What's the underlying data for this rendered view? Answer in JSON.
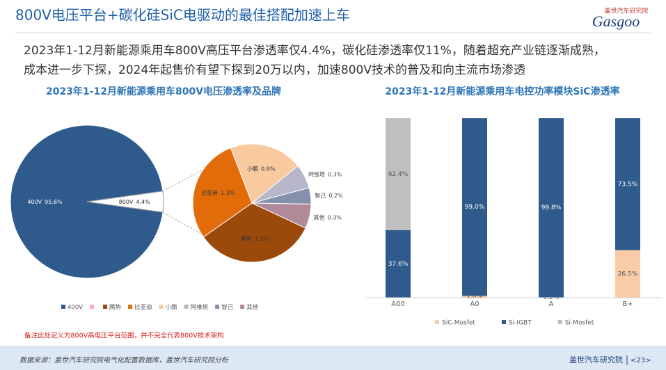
{
  "header": {
    "title": "800V电压平台+碳化硅SiC电驱动的最佳搭配加速上车",
    "logo_name": "盖世汽车研究院",
    "logo_brand": "Gasgoo"
  },
  "body": {
    "lines": [
      "2023年1-12月新能源乘用车800V高压平台渗透率仅4.4%，碳化硅渗透率仅11%，随着超充产业链逐渐成熟，",
      "成本进一步下探，2024年起售价有望下探到20万以内，加速800V技术的普及和向主流市场渗透"
    ]
  },
  "chart_data": [
    {
      "type": "pie-of-pie",
      "title": "2023年1-12月新能源乘用车800V电压渗透率及品牌",
      "categories": [
        "400V",
        "800V"
      ],
      "values": [
        95.6,
        4.4
      ],
      "value_labels": [
        "95.6%",
        "4.4%"
      ],
      "colors": [
        "#2e5a8c",
        "#ffffff"
      ],
      "breakdown": {
        "categories": [
          "腾势",
          "比亚迪",
          "小鹏",
          "阿维塔",
          "智己",
          "其他"
        ],
        "values": [
          1.5,
          1.3,
          0.9,
          0.3,
          0.2,
          0.3
        ],
        "value_labels": [
          "1.5%",
          "1.3%",
          "0.9%",
          "0.3%",
          "0.2%",
          "0.3%"
        ],
        "colors": [
          "#9c4a0c",
          "#e36c0a",
          "#f9c9a0",
          "#b7b7c9",
          "#8491ad",
          "#b08a98"
        ]
      },
      "legend": [
        {
          "name": "400V",
          "color": "#2e5a8c"
        },
        {
          "name": null,
          "color": "#f4b3c2"
        },
        {
          "name": "腾势",
          "color": "#9c4a0c"
        },
        {
          "name": "比亚迪",
          "color": "#e36c0a"
        },
        {
          "name": "小鹏",
          "color": "#f9c9a0"
        },
        {
          "name": "阿维塔",
          "color": "#b7b7c9"
        },
        {
          "name": "智己",
          "color": "#8491ad"
        },
        {
          "name": "其他",
          "color": "#b08a98"
        }
      ],
      "note": "备注此处定义为800V高电压平台范围，并不完全代表800V技术架构"
    },
    {
      "type": "stacked-bar",
      "title": "2023年1-12月新能源乘用车电控功率模块SiC渗透率",
      "categories": [
        "A00",
        "A0",
        "A",
        "B+"
      ],
      "ylim": [
        0,
        100
      ],
      "series": [
        {
          "name": "SiC-Mosfet",
          "color": "#f9cba6",
          "values": [
            0,
            1.0,
            0.2,
            26.5
          ],
          "value_labels": [
            null,
            "1.0%",
            "0.2%",
            "26.5%"
          ]
        },
        {
          "name": "Si-IGBT",
          "color": "#2e5a8c",
          "values": [
            37.6,
            99.0,
            99.8,
            73.5
          ],
          "value_labels": [
            "37.6%",
            "99.0%",
            "99.8%",
            "73.5%"
          ]
        },
        {
          "name": "Si-Mosfet",
          "color": "#bfbfbf",
          "values": [
            62.4,
            0,
            0,
            0
          ],
          "value_labels": [
            "62.4%",
            null,
            null,
            null
          ]
        }
      ]
    }
  ],
  "footer": {
    "source": "数据来源：盖世汽车研究院电气化配置数据库，盖世汽车研究院分析",
    "brand": "盖世汽车研究院",
    "page": "<23>"
  }
}
